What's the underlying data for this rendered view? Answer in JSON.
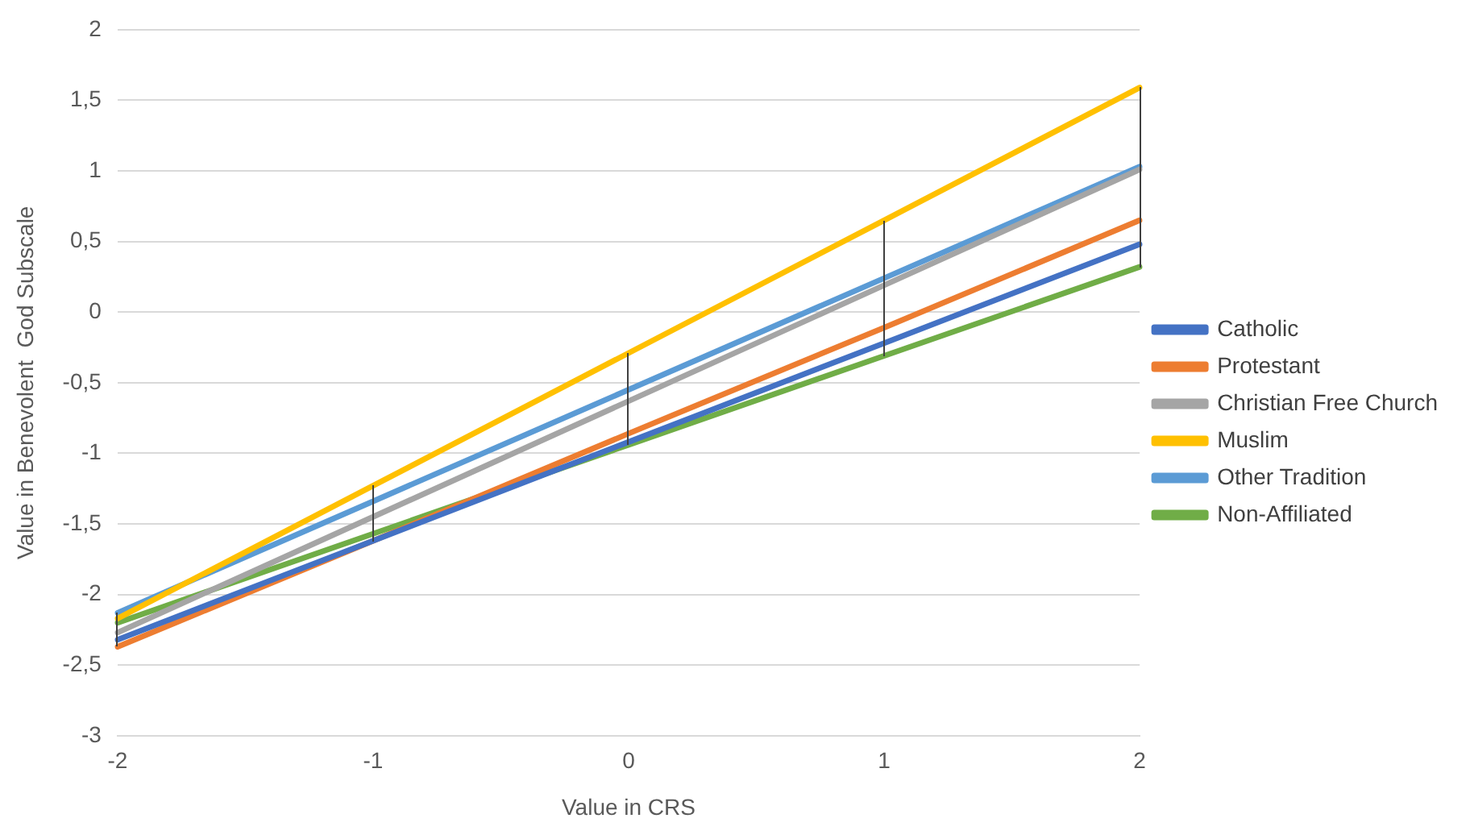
{
  "chart_data": {
    "type": "line",
    "xlabel": "Value in CRS",
    "ylabel": "Value in Benevolent  God Subscale",
    "categories": [
      "-2",
      "-1",
      "0",
      "1",
      "2"
    ],
    "series": [
      {
        "name": "Catholic",
        "color": "#4472c4",
        "values": [
          -2.32,
          -1.62,
          -0.92,
          -0.22,
          0.48
        ]
      },
      {
        "name": "Protestant",
        "color": "#ed7d31",
        "values": [
          -2.37,
          -1.62,
          -0.86,
          -0.11,
          0.65
        ]
      },
      {
        "name": "Christian Free Church",
        "color": "#a5a5a5",
        "values": [
          -2.27,
          -1.45,
          -0.63,
          0.19,
          1.01
        ]
      },
      {
        "name": "Muslim",
        "color": "#ffc000",
        "values": [
          -2.17,
          -1.23,
          -0.29,
          0.65,
          1.59
        ]
      },
      {
        "name": "Other Tradition",
        "color": "#5b9bd5",
        "values": [
          -2.13,
          -1.34,
          -0.55,
          0.24,
          1.03
        ]
      },
      {
        "name": "Non-Affiliated",
        "color": "#70ad47",
        "values": [
          -2.2,
          -1.57,
          -0.94,
          -0.31,
          0.32
        ]
      }
    ],
    "ylim": [
      -3,
      2
    ],
    "yticks": [
      {
        "value": -3,
        "label": "-3"
      },
      {
        "value": -2.5,
        "label": "-2,5"
      },
      {
        "value": -2,
        "label": "-2"
      },
      {
        "value": -1.5,
        "label": "-1,5"
      },
      {
        "value": -1,
        "label": "-1"
      },
      {
        "value": -0.5,
        "label": "-0,5"
      },
      {
        "value": 0,
        "label": "0"
      },
      {
        "value": 0.5,
        "label": "0,5"
      },
      {
        "value": 1,
        "label": "1"
      },
      {
        "value": 1.5,
        "label": "1,5"
      },
      {
        "value": 2,
        "label": "2"
      }
    ],
    "grid": "y",
    "legend": "right",
    "marker": "none",
    "line_style": "solid"
  }
}
